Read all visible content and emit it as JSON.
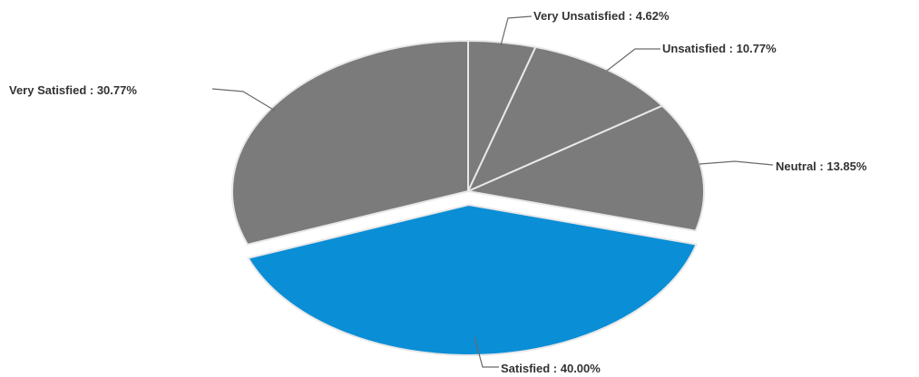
{
  "chart_data": {
    "type": "pie",
    "slices": [
      {
        "name": "Very Unsatisfied",
        "value": 4.62,
        "label": "Very Unsatisfied : 4.62%",
        "color": "#7b7b7b",
        "exploded": false
      },
      {
        "name": "Unsatisfied",
        "value": 10.77,
        "label": "Unsatisfied : 10.77%",
        "color": "#7b7b7b",
        "exploded": false
      },
      {
        "name": "Neutral",
        "value": 13.85,
        "label": "Neutral : 13.85%",
        "color": "#7b7b7b",
        "exploded": false
      },
      {
        "name": "Satisfied",
        "value": 40.0,
        "label": "Satisfied : 40.00%",
        "color": "#0a8ed6",
        "exploded": true
      },
      {
        "name": "Very Satisfied",
        "value": 30.77,
        "label": "Very Satisfied : 30.77%",
        "color": "#7b7b7b",
        "exploded": false
      }
    ],
    "title": "",
    "legend": "none",
    "slice_border_color": "#e8e8e8"
  }
}
